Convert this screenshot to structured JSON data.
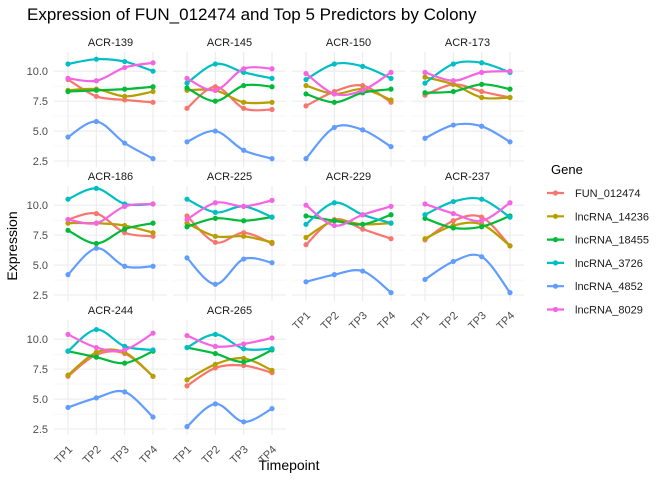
{
  "chart_data": {
    "type": "line",
    "title": "Expression of FUN_012474 and Top 5 Predictors by Colony",
    "xlabel": "Timepoint",
    "ylabel": "Expression",
    "categories": [
      "TP1",
      "TP2",
      "TP3",
      "TP4"
    ],
    "ylim": [
      2.0,
      11.6
    ],
    "yticks": [
      2.5,
      5.0,
      7.5,
      10.0
    ],
    "ytick_labels": [
      "2.5",
      "5.0",
      "7.5",
      "10.0"
    ],
    "grid": true,
    "legend": {
      "title": "Gene",
      "position": "right",
      "entries": [
        "FUN_012474",
        "lncRNA_14236",
        "lncRNA_18455",
        "lncRNA_3726",
        "lncRNA_4852",
        "lncRNA_8029"
      ]
    },
    "colors": {
      "FUN_012474": "#F8766D",
      "lncRNA_14236": "#B79F00",
      "lncRNA_18455": "#00BA38",
      "lncRNA_3726": "#00BFC4",
      "lncRNA_4852": "#619CFF",
      "lncRNA_8029": "#F564E3"
    },
    "panels": [
      {
        "colony": "ACR-139",
        "series": {
          "FUN_012474": [
            9.3,
            7.9,
            7.6,
            7.4
          ],
          "lncRNA_14236": [
            8.4,
            8.5,
            7.9,
            8.3
          ],
          "lncRNA_18455": [
            8.3,
            8.4,
            8.5,
            8.7
          ],
          "lncRNA_3726": [
            10.6,
            11.0,
            10.8,
            10.0
          ],
          "lncRNA_4852": [
            4.5,
            5.8,
            4.0,
            2.7
          ],
          "lncRNA_8029": [
            9.4,
            9.2,
            10.3,
            10.7
          ]
        }
      },
      {
        "colony": "ACR-145",
        "series": {
          "FUN_012474": [
            6.9,
            8.7,
            6.9,
            6.8
          ],
          "lncRNA_14236": [
            8.4,
            8.4,
            7.4,
            7.4
          ],
          "lncRNA_18455": [
            8.6,
            7.5,
            8.8,
            8.7
          ],
          "lncRNA_3726": [
            9.0,
            10.6,
            9.9,
            9.4
          ],
          "lncRNA_4852": [
            4.1,
            5.0,
            3.4,
            2.7
          ],
          "lncRNA_8029": [
            9.4,
            8.4,
            10.2,
            10.2
          ]
        }
      },
      {
        "colony": "ACR-150",
        "series": {
          "FUN_012474": [
            7.1,
            8.3,
            8.8,
            7.4
          ],
          "lncRNA_14236": [
            8.8,
            8.1,
            8.5,
            7.6
          ],
          "lncRNA_18455": [
            8.1,
            7.4,
            8.2,
            8.5
          ],
          "lncRNA_3726": [
            9.3,
            10.6,
            10.4,
            9.4
          ],
          "lncRNA_4852": [
            2.7,
            5.3,
            5.1,
            3.7
          ],
          "lncRNA_8029": [
            9.8,
            8.1,
            8.4,
            9.9
          ]
        }
      },
      {
        "colony": "ACR-173",
        "series": {
          "FUN_012474": [
            8.0,
            8.9,
            8.3,
            7.8
          ],
          "lncRNA_14236": [
            9.5,
            8.9,
            7.8,
            7.8
          ],
          "lncRNA_18455": [
            8.2,
            8.3,
            8.9,
            8.5
          ],
          "lncRNA_3726": [
            9.0,
            10.6,
            10.7,
            9.9
          ],
          "lncRNA_4852": [
            4.4,
            5.5,
            5.4,
            4.1
          ],
          "lncRNA_8029": [
            9.9,
            9.2,
            9.9,
            10.0
          ]
        }
      },
      {
        "colony": "ACR-186",
        "series": {
          "FUN_012474": [
            8.8,
            9.3,
            7.7,
            7.4
          ],
          "lncRNA_14236": [
            8.5,
            8.5,
            8.3,
            7.7
          ],
          "lncRNA_18455": [
            7.9,
            6.8,
            8.0,
            8.5
          ],
          "lncRNA_3726": [
            10.5,
            11.4,
            10.1,
            10.1
          ],
          "lncRNA_4852": [
            4.2,
            6.4,
            4.9,
            4.9
          ],
          "lncRNA_8029": [
            8.8,
            8.5,
            9.9,
            10.1
          ]
        }
      },
      {
        "colony": "ACR-225",
        "series": {
          "FUN_012474": [
            9.1,
            6.9,
            7.7,
            6.8
          ],
          "lncRNA_14236": [
            8.5,
            7.4,
            7.4,
            6.9
          ],
          "lncRNA_18455": [
            8.2,
            8.9,
            8.7,
            9.0
          ],
          "lncRNA_3726": [
            10.5,
            9.4,
            9.9,
            9.0
          ],
          "lncRNA_4852": [
            5.6,
            3.4,
            5.5,
            5.2
          ],
          "lncRNA_8029": [
            8.8,
            10.2,
            9.9,
            10.4
          ]
        }
      },
      {
        "colony": "ACR-229",
        "series": {
          "FUN_012474": [
            6.7,
            8.8,
            8.0,
            7.2
          ],
          "lncRNA_14236": [
            7.3,
            8.7,
            8.4,
            8.5
          ],
          "lncRNA_18455": [
            9.1,
            8.7,
            8.4,
            9.2
          ],
          "lncRNA_3726": [
            8.4,
            10.2,
            9.2,
            8.5
          ],
          "lncRNA_4852": [
            3.6,
            4.2,
            4.5,
            2.7
          ],
          "lncRNA_8029": [
            10.0,
            8.3,
            9.2,
            9.9
          ]
        }
      },
      {
        "colony": "ACR-237",
        "series": {
          "FUN_012474": [
            7.1,
            8.7,
            9.0,
            6.6
          ],
          "lncRNA_14236": [
            7.2,
            8.3,
            8.4,
            6.6
          ],
          "lncRNA_18455": [
            8.9,
            8.1,
            8.2,
            9.1
          ],
          "lncRNA_3726": [
            9.2,
            10.3,
            10.5,
            9.0
          ],
          "lncRNA_4852": [
            3.8,
            5.3,
            5.7,
            2.7
          ],
          "lncRNA_8029": [
            10.1,
            9.3,
            8.7,
            10.2
          ]
        }
      },
      {
        "colony": "ACR-244",
        "series": {
          "FUN_012474": [
            6.9,
            8.7,
            8.8,
            6.9
          ],
          "lncRNA_14236": [
            7.0,
            8.9,
            8.9,
            6.9
          ],
          "lncRNA_18455": [
            9.0,
            8.5,
            8.0,
            9.0
          ],
          "lncRNA_3726": [
            9.0,
            10.8,
            9.4,
            9.1
          ],
          "lncRNA_4852": [
            4.3,
            5.1,
            5.6,
            3.5
          ],
          "lncRNA_8029": [
            10.4,
            9.3,
            9.1,
            10.5
          ]
        }
      },
      {
        "colony": "ACR-265",
        "series": {
          "FUN_012474": [
            6.1,
            7.6,
            7.8,
            7.2
          ],
          "lncRNA_14236": [
            6.6,
            7.9,
            8.4,
            7.4
          ],
          "lncRNA_18455": [
            9.3,
            8.8,
            8.1,
            9.1
          ],
          "lncRNA_3726": [
            9.3,
            10.4,
            9.2,
            9.2
          ],
          "lncRNA_4852": [
            2.7,
            4.6,
            3.1,
            4.2
          ],
          "lncRNA_8029": [
            10.3,
            9.4,
            9.6,
            10.1
          ]
        }
      }
    ]
  }
}
